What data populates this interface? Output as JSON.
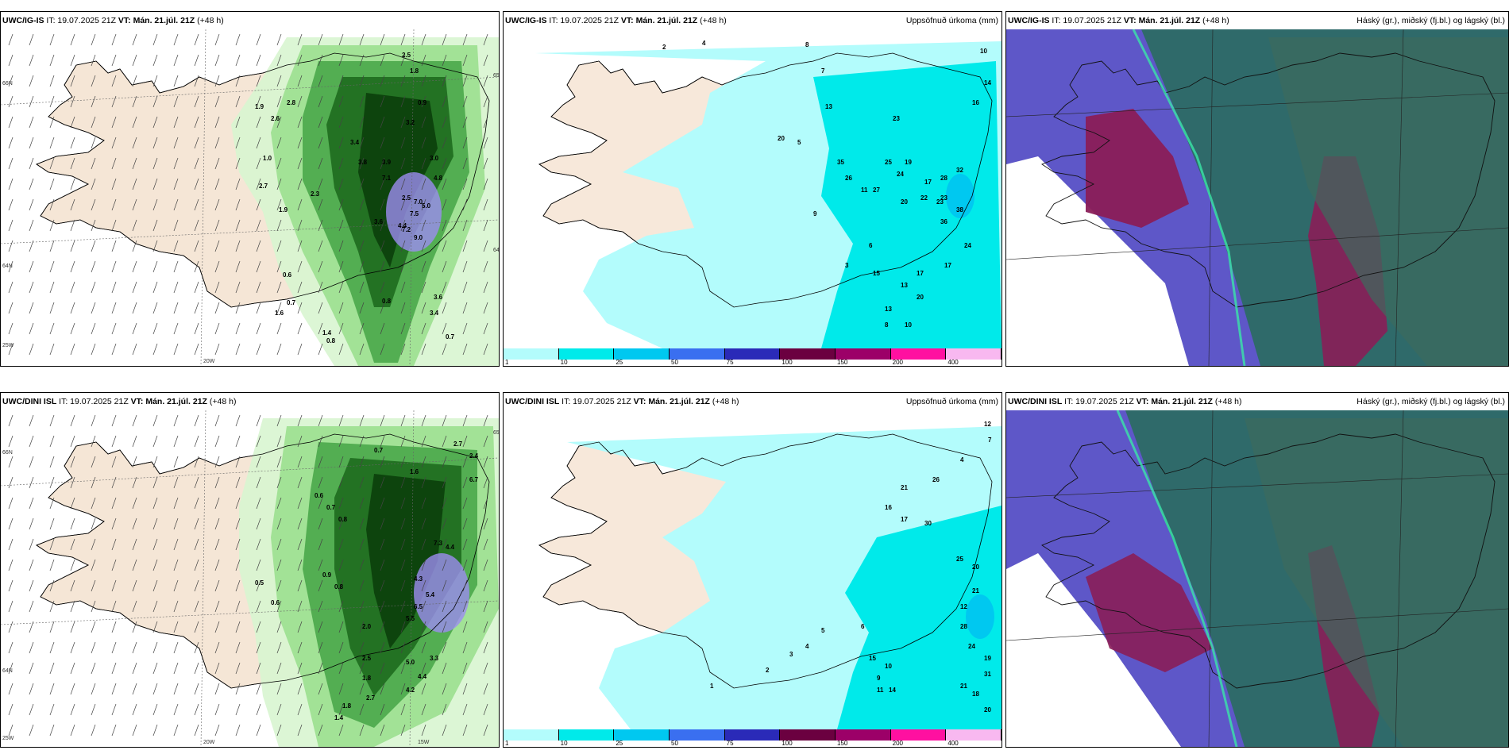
{
  "panels": [
    {
      "model": "UWC/IG-IS",
      "it": "IT: 19.07.2025 21Z",
      "vt": "VT: Mán. 21.júl. 21Z",
      "lead": "(+48 h)",
      "right": "",
      "kind": "wind"
    },
    {
      "model": "UWC/IG-IS",
      "it": "IT: 19.07.2025 21Z",
      "vt": "VT: Mán. 21.júl. 21Z",
      "lead": "(+48 h)",
      "right": "Uppsöfnuð úrkoma (mm)",
      "kind": "precip"
    },
    {
      "model": "UWC/IG-IS",
      "it": "IT: 19.07.2025 21Z",
      "vt": "VT: Mán. 21.júl. 21Z",
      "lead": "(+48 h)",
      "right": "Háský (gr.), miðský (fj.bl.) og lágský (bl.)",
      "kind": "cloud"
    },
    {
      "model": "UWC/DINI ISL",
      "it": "IT: 19.07.2025 21Z",
      "vt": "VT: Mán. 21.júl. 21Z",
      "lead": "(+48 h)",
      "right": "",
      "kind": "wind"
    },
    {
      "model": "UWC/DINI ISL",
      "it": "IT: 19.07.2025 21Z",
      "vt": "VT: Mán. 21.júl. 21Z",
      "lead": "(+48 h)",
      "right": "Uppsöfnuð úrkoma (mm)",
      "kind": "precip"
    },
    {
      "model": "UWC/DINI ISL",
      "it": "IT: 19.07.2025 21Z",
      "vt": "VT: Mán. 21.júl. 21Z",
      "lead": "(+48 h)",
      "right": "Háský (gr.), miðský (fj.bl.) og lágský (bl.)",
      "kind": "cloud"
    }
  ],
  "axis_labels": {
    "lat66": "66N",
    "lat64": "64N",
    "lat65": "65N",
    "lat25w": "25W",
    "lon20": "20W",
    "lon15": "15W"
  },
  "colorbar": {
    "ticks": [
      "1",
      "10",
      "25",
      "50",
      "75",
      "100",
      "150",
      "200",
      "400"
    ],
    "colors": [
      "#b3fcfc",
      "#00eaea",
      "#00c8f0",
      "#3a6ff0",
      "#2a2ab8",
      "#6b0040",
      "#9c0068",
      "#ff10a0",
      "#f8b8f0"
    ]
  },
  "wind_values_top": [
    "2.5",
    "1.8",
    "1.9",
    "2.6",
    "2.8",
    "0.9",
    "3.4",
    "3.2",
    "1.0",
    "3.8",
    "3.9",
    "3.0",
    "2.7",
    "2.3",
    "7.1",
    "7.0",
    "4.8",
    "3.6",
    "2.5",
    "1.9",
    "5.0",
    "4.4",
    "7.5",
    "9.0",
    "7.2",
    "0.6",
    "0.7",
    "0.8",
    "1.4",
    "3.6",
    "3.4",
    "0.7",
    "1.6",
    "0.8"
  ],
  "wind_values_bottom": [
    "2.7",
    "2.4",
    "0.7",
    "1.6",
    "6.7",
    "0.6",
    "0.7",
    "0.8",
    "7.3",
    "4.4",
    "4.3",
    "5.4",
    "6.5",
    "5.5",
    "5.0",
    "4.4",
    "4.2",
    "3.3",
    "2.7",
    "2.5",
    "2.0",
    "1.8",
    "1.8",
    "1.4",
    "0.9",
    "0.8",
    "0.6",
    "0.5"
  ],
  "precip_values_top": [
    "2",
    "4",
    "8",
    "7",
    "10",
    "14",
    "16",
    "13",
    "20",
    "23",
    "25",
    "35",
    "26",
    "24",
    "17",
    "27",
    "32",
    "19",
    "22",
    "28",
    "20",
    "23",
    "38",
    "36",
    "24",
    "17",
    "17",
    "20",
    "13",
    "8",
    "10",
    "13",
    "15",
    "23",
    "5",
    "9",
    "11",
    "6",
    "3"
  ],
  "precip_values_bottom": [
    "12",
    "7",
    "4",
    "26",
    "21",
    "16",
    "17",
    "30",
    "25",
    "20",
    "21",
    "12",
    "28",
    "24",
    "31",
    "20",
    "21",
    "18",
    "19",
    "14",
    "11",
    "9",
    "10",
    "15",
    "6",
    "5",
    "4",
    "3",
    "2",
    "1"
  ]
}
